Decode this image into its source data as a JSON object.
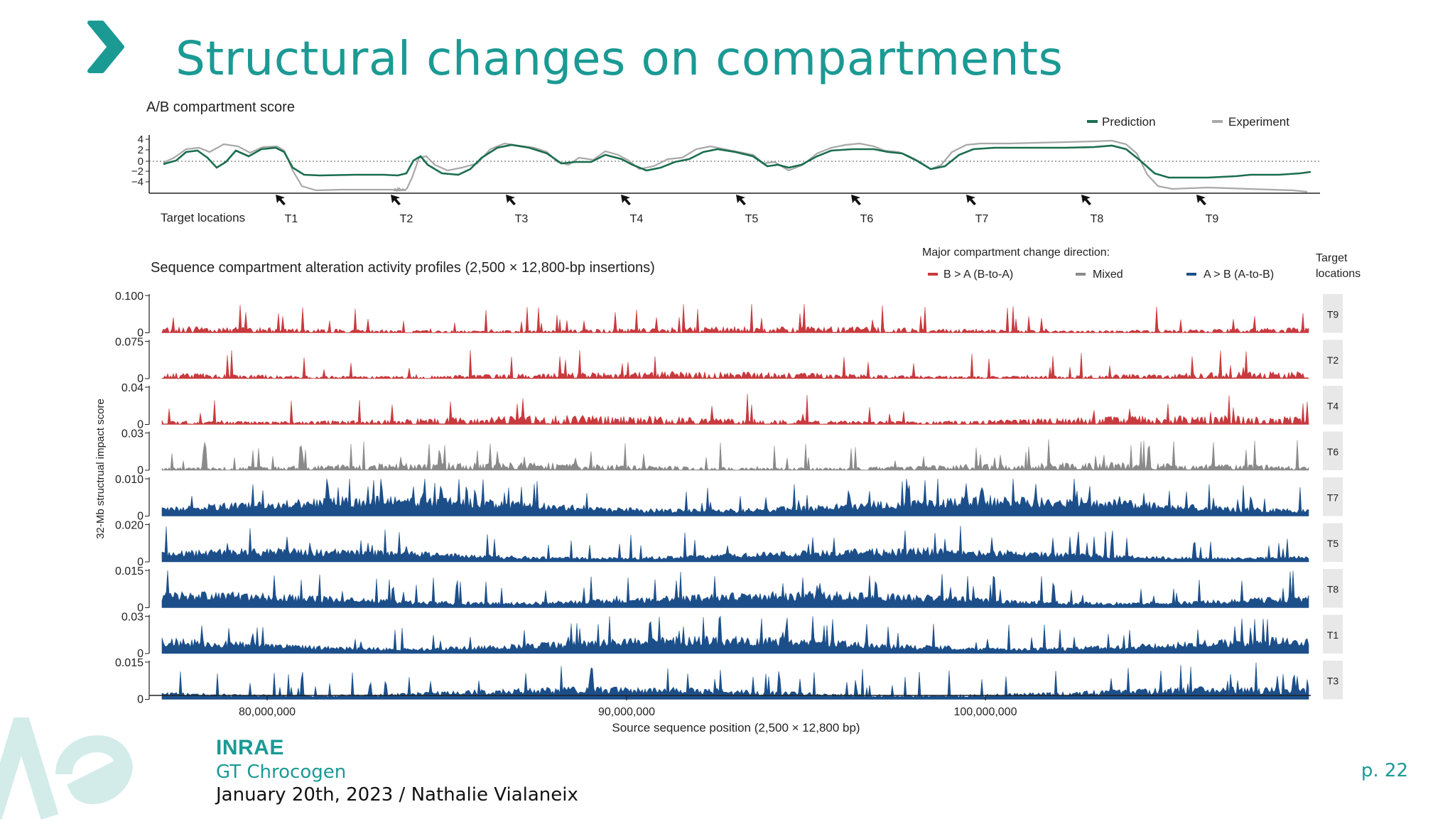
{
  "slide": {
    "title": "Structural changes on compartments",
    "footer_logo": "INRAE",
    "footer_team": "GT Chrocogen",
    "footer_date": "January 20th, 2023 / Nathalie Vialaneix",
    "page": "p. 22"
  },
  "colors": {
    "accent": "#1b9a94",
    "prediction": "#1a6e4e",
    "experiment": "#a8a8a8",
    "b_to_a": "#c83a3e",
    "mixed": "#8a8a8a",
    "a_to_b": "#1c4f8a"
  },
  "icons": [
    "chevron-right-icon",
    "inrae-watermark-icon",
    "arrow-icon"
  ],
  "figure_top": {
    "title": "A/B compartment score",
    "legend": [
      "Prediction",
      "Experiment"
    ],
    "y_ticks": [
      "4",
      "2",
      "0",
      "−2",
      "−4"
    ],
    "target_label": "Target locations",
    "targets": [
      "T1",
      "T2",
      "T3",
      "T4",
      "T5",
      "T6",
      "T7",
      "T8",
      "T9"
    ]
  },
  "figure_bottom": {
    "title": "Sequence compartment alteration activity profiles (2,500 × 12,800-bp insertions)",
    "legend_title": "Major compartment change direction:",
    "legend": [
      "B > A (B-to-A)",
      "Mixed",
      "A > B (A-to-B)"
    ],
    "strip_header": "Target locations",
    "y_axis_label": "32-Mb structrual impact score",
    "x_axis_label": "Source sequence position (2,500 × 12,800 bp)",
    "x_ticks": [
      "80,000,000",
      "90,000,000",
      "100,000,000"
    ],
    "tracks": [
      {
        "target": "T9",
        "max": "0.100",
        "zero": "0",
        "group": "b_to_a",
        "level": 0.18
      },
      {
        "target": "T2",
        "max": "0.075",
        "zero": "0",
        "group": "b_to_a",
        "level": 0.2
      },
      {
        "target": "T4",
        "max": "0.04",
        "zero": "0",
        "group": "b_to_a",
        "level": 0.25
      },
      {
        "target": "T6",
        "max": "0.03",
        "zero": "0",
        "group": "mixed",
        "level": 0.22
      },
      {
        "target": "T7",
        "max": "0.010",
        "zero": "0",
        "group": "a_to_b",
        "level": 0.55
      },
      {
        "target": "T5",
        "max": "0.020",
        "zero": "0",
        "group": "a_to_b",
        "level": 0.38
      },
      {
        "target": "T8",
        "max": "0.015",
        "zero": "0",
        "group": "a_to_b",
        "level": 0.45
      },
      {
        "target": "T1",
        "max": "0.03",
        "zero": "0",
        "group": "a_to_b",
        "level": 0.48
      },
      {
        "target": "T3",
        "max": "0.015",
        "zero": "0",
        "group": "a_to_b",
        "level": 0.35
      }
    ]
  }
}
